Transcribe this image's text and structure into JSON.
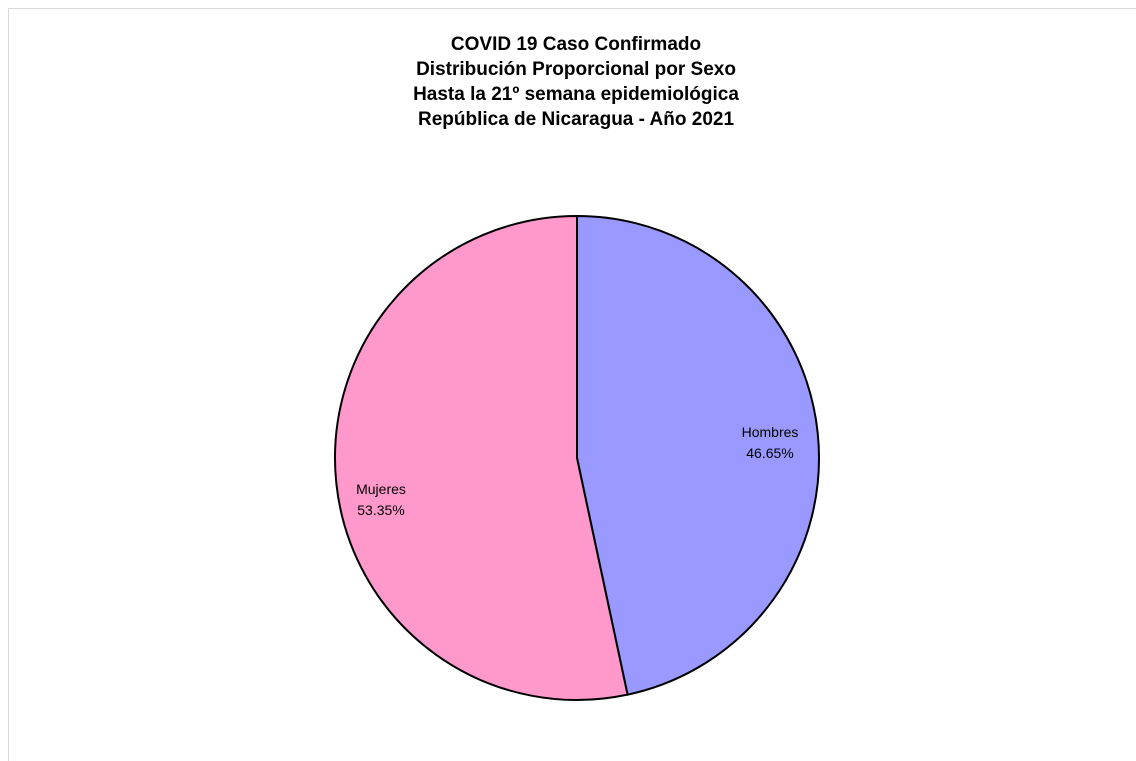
{
  "chart_data": {
    "type": "pie",
    "title": [
      "COVID 19 Caso Confirmado",
      "Distribución Proporcional por Sexo",
      "Hasta la 21º semana epidemiológica",
      "República de Nicaragua - Año 2021"
    ],
    "slices": [
      {
        "label": "Hombres",
        "value": 46.65,
        "value_text": "46.65%",
        "color": "#9999ff"
      },
      {
        "label": "Mujeres",
        "value": 53.35,
        "value_text": "53.35%",
        "color": "#ff99cc"
      }
    ],
    "start": "12 o'clock",
    "direction": "clockwise",
    "border_color": "#000000",
    "legend": "none"
  }
}
